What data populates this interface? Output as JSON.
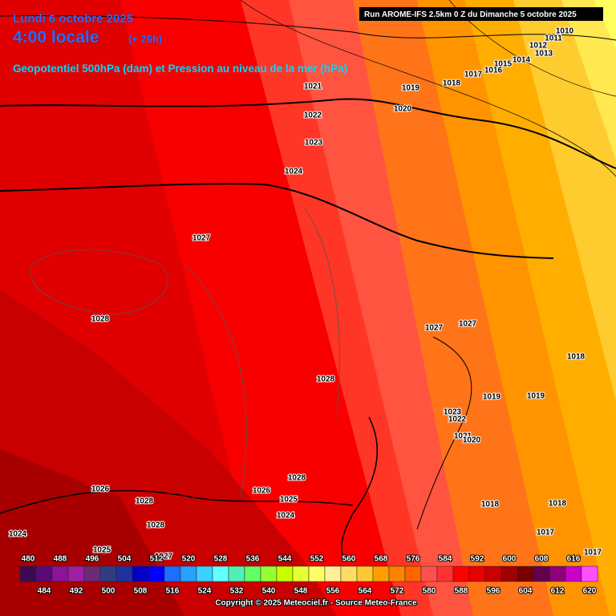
{
  "header": {
    "date": "Lundi 6 octobre 2025",
    "time": "4:00 locale",
    "offset": "(+ 26h)",
    "subtitle": "Geopotentiel 500hPa (dam) et Pression au niveau de la mer (hPa)",
    "run": "Run AROME-IFS 2.5km 0 Z du Dimanche 5 octobre 2025"
  },
  "isobar_labels": [
    1021,
    1019,
    1018,
    1017,
    1016,
    1015,
    1014,
    1013,
    1012,
    1011,
    1010,
    1020,
    1022,
    1023,
    1024,
    1027,
    1028,
    1027,
    1027,
    1018,
    1028,
    1019,
    1019,
    1023,
    1022,
    1021,
    1020,
    1028,
    1026,
    1026,
    1025,
    1028,
    1024,
    1018,
    1018,
    1028,
    1017,
    1024,
    1025,
    1027,
    1017
  ],
  "legend": {
    "top_labels": [
      480,
      488,
      496,
      504,
      512,
      520,
      528,
      536,
      544,
      552,
      560,
      568,
      576,
      584,
      592,
      600,
      608,
      616
    ],
    "bottom_labels": [
      484,
      492,
      500,
      508,
      516,
      524,
      532,
      540,
      548,
      556,
      564,
      572,
      580,
      588,
      596,
      604,
      612,
      620
    ],
    "colors": [
      "#3c0a50",
      "#5a0a78",
      "#8c1496",
      "#a01ea0",
      "#6e2878",
      "#323c82",
      "#1e32a0",
      "#0000c8",
      "#0000ff",
      "#1e6eff",
      "#28a0ff",
      "#3cd2ff",
      "#64ffff",
      "#50f0b4",
      "#64ff64",
      "#96ff32",
      "#c8ff00",
      "#e6ff32",
      "#ffff64",
      "#fff096",
      "#ffdc64",
      "#ffc832",
      "#ffa000",
      "#ff8200",
      "#ff6400",
      "#ff5050",
      "#ff3232",
      "#ff0000",
      "#e60000",
      "#c80000",
      "#a00000",
      "#780000",
      "#640050",
      "#8c0078",
      "#c800c8",
      "#ff50ff"
    ]
  },
  "footer": "Copyright © 2025 Meteociel.fr - Source Meteo-France"
}
